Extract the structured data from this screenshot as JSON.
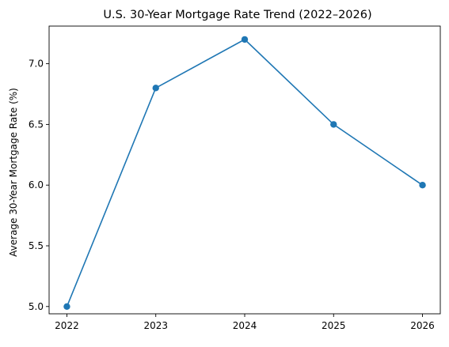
{
  "chart_data": {
    "type": "line",
    "title": "U.S. 30-Year Mortgage Rate Trend (2022–2026)",
    "xlabel": "",
    "ylabel": "Average 30-Year Mortgage Rate (%)",
    "x": [
      2022,
      2023,
      2024,
      2025,
      2026
    ],
    "x_tick_labels": [
      "2022",
      "2023",
      "2024",
      "2025",
      "2026"
    ],
    "series": [
      {
        "values": [
          5.0,
          6.8,
          7.2,
          6.5,
          6.0
        ],
        "color": "#1f77b4",
        "marker": "circle"
      }
    ],
    "y_ticks": [
      5.0,
      5.5,
      6.0,
      6.5,
      7.0
    ],
    "y_tick_labels": [
      "5.0",
      "5.5",
      "6.0",
      "6.5",
      "7.0"
    ],
    "ylim": [
      4.94,
      7.31
    ],
    "xlim": [
      2021.8,
      2026.2
    ],
    "grid": false,
    "legend": "none"
  }
}
